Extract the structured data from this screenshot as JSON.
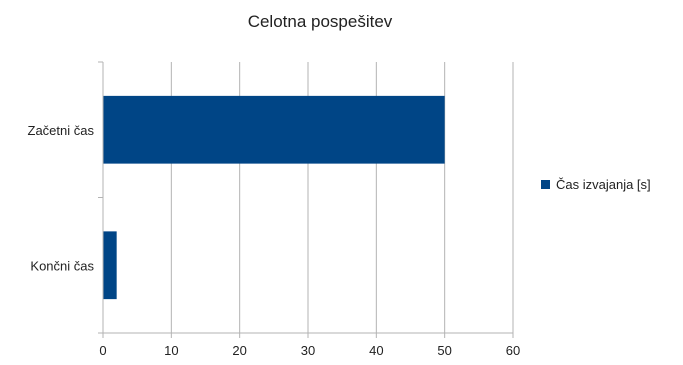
{
  "chart_data": {
    "type": "bar",
    "orientation": "horizontal",
    "title": "Celotna pospešitev",
    "categories": [
      "Začetni čas",
      "Končni čas"
    ],
    "series": [
      {
        "name": "Čas izvajanja [s]",
        "values": [
          50,
          2
        ],
        "color": "#004586"
      }
    ],
    "xlim": [
      0,
      60
    ],
    "xticks": [
      0,
      10,
      20,
      30,
      40,
      50,
      60
    ],
    "grid": true,
    "legend": "right"
  }
}
